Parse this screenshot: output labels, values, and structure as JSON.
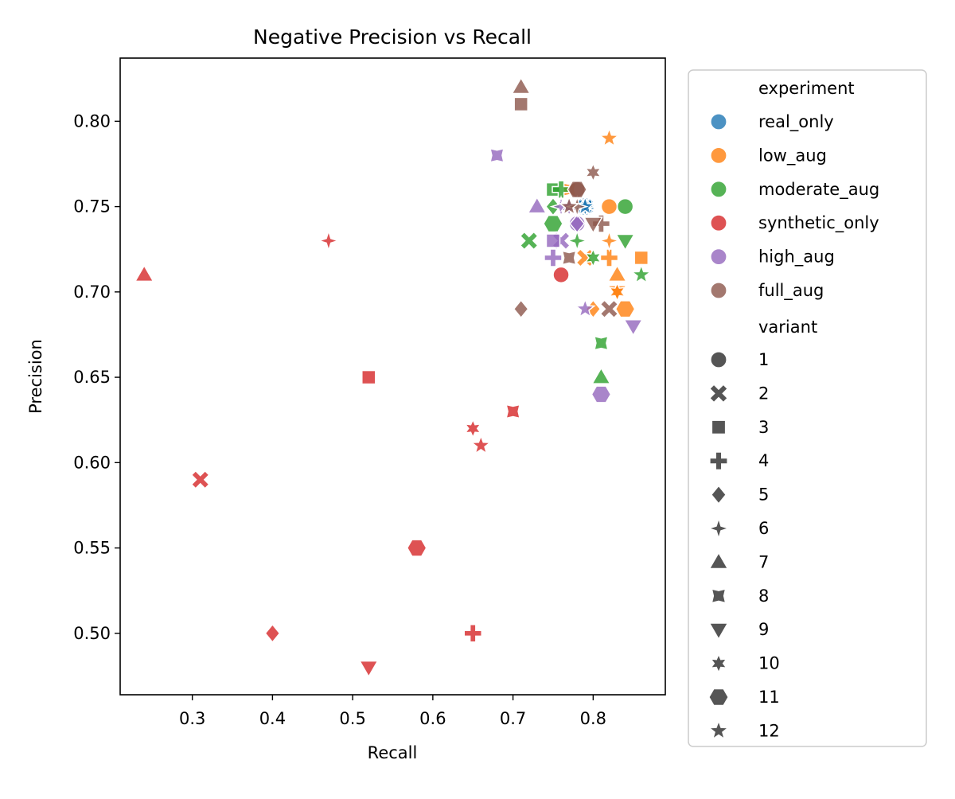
{
  "chart_data": {
    "type": "scatter",
    "title": "Negative Precision vs Recall",
    "xlabel": "Recall",
    "ylabel": "Precision",
    "xlim": [
      0.21,
      0.89
    ],
    "ylim": [
      0.464,
      0.837
    ],
    "xticks": [
      0.3,
      0.4,
      0.5,
      0.6,
      0.7,
      0.8
    ],
    "xtick_labels": [
      "0.3",
      "0.4",
      "0.5",
      "0.6",
      "0.7",
      "0.8"
    ],
    "yticks": [
      0.5,
      0.55,
      0.6,
      0.65,
      0.7,
      0.75,
      0.8
    ],
    "ytick_labels": [
      "0.50",
      "0.55",
      "0.60",
      "0.65",
      "0.70",
      "0.75",
      "0.80"
    ],
    "grid": false,
    "legend_placement": "outside right",
    "hue_title": "experiment",
    "style_title": "variant",
    "series": [
      {
        "name": "real_only",
        "color": "#1f77b4",
        "points": [
          {
            "variant": "1",
            "x": 0.79,
            "y": 0.75
          },
          {
            "variant": "2",
            "x": 0.79,
            "y": 0.75
          },
          {
            "variant": "3",
            "x": 0.79,
            "y": 0.75
          },
          {
            "variant": "4",
            "x": 0.79,
            "y": 0.75
          },
          {
            "variant": "5",
            "x": 0.79,
            "y": 0.75
          },
          {
            "variant": "6",
            "x": 0.79,
            "y": 0.75
          },
          {
            "variant": "12",
            "x": 0.79,
            "y": 0.75
          }
        ]
      },
      {
        "name": "low_aug",
        "color": "#ff7f0e",
        "points": [
          {
            "variant": "1",
            "x": 0.82,
            "y": 0.75
          },
          {
            "variant": "2",
            "x": 0.79,
            "y": 0.72
          },
          {
            "variant": "3",
            "x": 0.86,
            "y": 0.72
          },
          {
            "variant": "4",
            "x": 0.82,
            "y": 0.72
          },
          {
            "variant": "5",
            "x": 0.8,
            "y": 0.69
          },
          {
            "variant": "6",
            "x": 0.82,
            "y": 0.73
          },
          {
            "variant": "7",
            "x": 0.83,
            "y": 0.71
          },
          {
            "variant": "8",
            "x": 0.77,
            "y": 0.76
          },
          {
            "variant": "9",
            "x": 0.83,
            "y": 0.7
          },
          {
            "variant": "10",
            "x": 0.83,
            "y": 0.7
          },
          {
            "variant": "11",
            "x": 0.84,
            "y": 0.69
          },
          {
            "variant": "12",
            "x": 0.82,
            "y": 0.79
          }
        ]
      },
      {
        "name": "moderate_aug",
        "color": "#2ca02c",
        "points": [
          {
            "variant": "1",
            "x": 0.84,
            "y": 0.75
          },
          {
            "variant": "2",
            "x": 0.72,
            "y": 0.73
          },
          {
            "variant": "3",
            "x": 0.75,
            "y": 0.76
          },
          {
            "variant": "4",
            "x": 0.76,
            "y": 0.76
          },
          {
            "variant": "5",
            "x": 0.75,
            "y": 0.75
          },
          {
            "variant": "6",
            "x": 0.78,
            "y": 0.73
          },
          {
            "variant": "7",
            "x": 0.81,
            "y": 0.65
          },
          {
            "variant": "8",
            "x": 0.81,
            "y": 0.67
          },
          {
            "variant": "9",
            "x": 0.84,
            "y": 0.73
          },
          {
            "variant": "10",
            "x": 0.8,
            "y": 0.72
          },
          {
            "variant": "11",
            "x": 0.75,
            "y": 0.74
          },
          {
            "variant": "12",
            "x": 0.86,
            "y": 0.71
          }
        ]
      },
      {
        "name": "synthetic_only",
        "color": "#d62728",
        "points": [
          {
            "variant": "1",
            "x": 0.76,
            "y": 0.71
          },
          {
            "variant": "2",
            "x": 0.31,
            "y": 0.59
          },
          {
            "variant": "3",
            "x": 0.52,
            "y": 0.65
          },
          {
            "variant": "4",
            "x": 0.65,
            "y": 0.5
          },
          {
            "variant": "5",
            "x": 0.4,
            "y": 0.5
          },
          {
            "variant": "6",
            "x": 0.47,
            "y": 0.73
          },
          {
            "variant": "7",
            "x": 0.24,
            "y": 0.71
          },
          {
            "variant": "8",
            "x": 0.7,
            "y": 0.63
          },
          {
            "variant": "9",
            "x": 0.52,
            "y": 0.48
          },
          {
            "variant": "10",
            "x": 0.65,
            "y": 0.62
          },
          {
            "variant": "11",
            "x": 0.58,
            "y": 0.55
          },
          {
            "variant": "12",
            "x": 0.66,
            "y": 0.61
          }
        ]
      },
      {
        "name": "high_aug",
        "color": "#9467bd",
        "points": [
          {
            "variant": "1",
            "x": 0.78,
            "y": 0.74
          },
          {
            "variant": "2",
            "x": 0.76,
            "y": 0.73
          },
          {
            "variant": "3",
            "x": 0.75,
            "y": 0.73
          },
          {
            "variant": "4",
            "x": 0.75,
            "y": 0.72
          },
          {
            "variant": "5",
            "x": 0.78,
            "y": 0.74
          },
          {
            "variant": "6",
            "x": 0.76,
            "y": 0.75
          },
          {
            "variant": "7",
            "x": 0.73,
            "y": 0.75
          },
          {
            "variant": "8",
            "x": 0.68,
            "y": 0.78
          },
          {
            "variant": "9",
            "x": 0.85,
            "y": 0.68
          },
          {
            "variant": "10",
            "x": 0.77,
            "y": 0.75
          },
          {
            "variant": "11",
            "x": 0.81,
            "y": 0.64
          },
          {
            "variant": "12",
            "x": 0.79,
            "y": 0.69
          }
        ]
      },
      {
        "name": "full_aug",
        "color": "#8c564b",
        "points": [
          {
            "variant": "1",
            "x": 0.78,
            "y": 0.76
          },
          {
            "variant": "2",
            "x": 0.82,
            "y": 0.69
          },
          {
            "variant": "3",
            "x": 0.71,
            "y": 0.81
          },
          {
            "variant": "4",
            "x": 0.81,
            "y": 0.74
          },
          {
            "variant": "5",
            "x": 0.71,
            "y": 0.69
          },
          {
            "variant": "6",
            "x": 0.78,
            "y": 0.75
          },
          {
            "variant": "7",
            "x": 0.71,
            "y": 0.82
          },
          {
            "variant": "8",
            "x": 0.77,
            "y": 0.72
          },
          {
            "variant": "9",
            "x": 0.8,
            "y": 0.74
          },
          {
            "variant": "10",
            "x": 0.8,
            "y": 0.77
          },
          {
            "variant": "11",
            "x": 0.78,
            "y": 0.76
          },
          {
            "variant": "12",
            "x": 0.77,
            "y": 0.75
          }
        ]
      }
    ],
    "variant_legend": [
      {
        "label": "1",
        "marker": "circle"
      },
      {
        "label": "2",
        "marker": "x"
      },
      {
        "label": "3",
        "marker": "square"
      },
      {
        "label": "4",
        "marker": "plus"
      },
      {
        "label": "5",
        "marker": "diamond"
      },
      {
        "label": "6",
        "marker": "star4"
      },
      {
        "label": "7",
        "marker": "triangle-up"
      },
      {
        "label": "8",
        "marker": "star4-wide"
      },
      {
        "label": "9",
        "marker": "triangle-down"
      },
      {
        "label": "10",
        "marker": "star6"
      },
      {
        "label": "11",
        "marker": "hexagon"
      },
      {
        "label": "12",
        "marker": "star5"
      }
    ],
    "legend_marker_color": "#555555"
  }
}
